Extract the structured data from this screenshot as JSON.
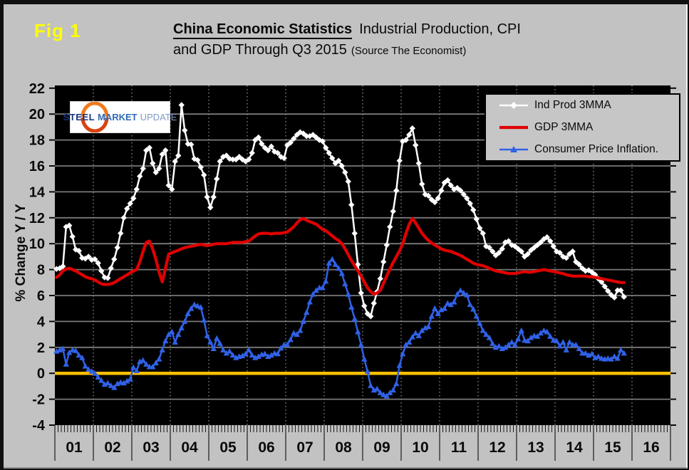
{
  "figure_label": "Fig 1",
  "header": {
    "title_bold": "China Economic Statistics",
    "title_rest": "Industrial Production, CPI",
    "title_line2": "and GDP Through Q3 2015",
    "source": "(Source The Economist)"
  },
  "logo": {
    "word1": "STEEL",
    "word2": "MARKET",
    "word3": "UPDATE"
  },
  "y_axis": {
    "title": "% Change Y / Y"
  },
  "colors": {
    "panel_gray": "#c2c2c2",
    "plot_background": "#000000",
    "ind_prod": "#ffffff",
    "gdp": "#e10000",
    "cpi": "#3061e6",
    "zero_line": "#ffc000",
    "gridline": "#7a7a7a",
    "fig_label_yellow": "#ffff00"
  },
  "chart_data": {
    "type": "line",
    "title": "China Economic Statistics Industrial Production, CPI and GDP Through Q3 2015",
    "xlabel": "",
    "ylabel": "% Change Y / Y",
    "ylim": [
      -4,
      22
    ],
    "ytick_step": 2,
    "grid": "horizontal solid, vertical dotted at year boundaries",
    "legend_position": "top-right inside plot",
    "x_years": [
      "01",
      "02",
      "03",
      "04",
      "05",
      "06",
      "07",
      "08",
      "09",
      "10",
      "11",
      "12",
      "13",
      "14",
      "15",
      "16"
    ],
    "x_start": "2001-01",
    "x_end": "2015-10",
    "x_frequency": "monthly",
    "zero_line_value": 0,
    "series": [
      {
        "name": "Ind Prod 3MMA",
        "color": "#ffffff",
        "marker": "diamond",
        "values": [
          8.05,
          8.1,
          8.25,
          11.3,
          11.4,
          10.55,
          9.55,
          9.45,
          8.9,
          8.85,
          9.0,
          8.75,
          8.8,
          8.5,
          7.9,
          7.4,
          7.35,
          8.1,
          8.8,
          9.7,
          10.8,
          12.0,
          12.7,
          13.1,
          13.5,
          14.2,
          15.2,
          15.8,
          17.2,
          17.4,
          16.2,
          15.5,
          15.8,
          16.9,
          17.2,
          14.5,
          14.2,
          16.35,
          16.8,
          20.7,
          18.75,
          17.7,
          17.65,
          16.55,
          16.45,
          15.9,
          15.3,
          13.6,
          12.8,
          13.6,
          15.0,
          16.35,
          16.7,
          16.8,
          16.55,
          16.5,
          16.5,
          16.7,
          16.5,
          16.35,
          16.5,
          17.0,
          18.0,
          18.2,
          17.7,
          17.4,
          17.2,
          17.5,
          17.1,
          17.0,
          16.7,
          16.6,
          17.6,
          17.8,
          18.1,
          18.4,
          18.6,
          18.5,
          18.3,
          18.3,
          18.4,
          18.2,
          18.0,
          17.9,
          17.4,
          17.0,
          16.6,
          16.2,
          16.4,
          16.0,
          15.5,
          14.8,
          13.0,
          10.8,
          8.4,
          6.2,
          5.2,
          4.6,
          4.4,
          5.4,
          6.3,
          7.3,
          8.6,
          9.9,
          11.3,
          12.5,
          14.1,
          16.4,
          17.9,
          18.0,
          18.4,
          18.9,
          17.6,
          16.2,
          14.6,
          13.8,
          13.7,
          13.4,
          13.2,
          13.5,
          14.1,
          14.7,
          14.9,
          14.5,
          14.2,
          14.3,
          14.1,
          13.8,
          13.5,
          13.1,
          12.6,
          11.9,
          11.2,
          10.8,
          9.8,
          9.7,
          9.4,
          9.1,
          9.3,
          9.6,
          10.1,
          10.2,
          9.9,
          9.8,
          9.6,
          9.4,
          9.0,
          9.2,
          9.5,
          9.7,
          9.9,
          10.1,
          10.35,
          10.5,
          10.2,
          9.8,
          9.4,
          9.3,
          9.0,
          8.9,
          9.2,
          9.4,
          8.6,
          8.4,
          8.1,
          7.9,
          7.95,
          7.8,
          7.6,
          7.3,
          7.05,
          6.7,
          6.35,
          6.05,
          5.85,
          6.4,
          6.4,
          5.9
        ]
      },
      {
        "name": "GDP 3MMA",
        "color": "#e10000",
        "marker": "none",
        "values": [
          7.4,
          7.6,
          7.9,
          8.05,
          8.1,
          8.0,
          7.9,
          7.75,
          7.6,
          7.45,
          7.35,
          7.3,
          7.2,
          7.05,
          6.9,
          6.85,
          6.85,
          6.9,
          7.0,
          7.15,
          7.3,
          7.45,
          7.6,
          7.75,
          7.9,
          8.0,
          8.6,
          9.4,
          10.1,
          10.2,
          9.6,
          8.8,
          7.8,
          7.05,
          8.1,
          9.2,
          9.3,
          9.4,
          9.5,
          9.6,
          9.7,
          9.75,
          9.8,
          9.85,
          9.9,
          9.95,
          9.9,
          9.85,
          9.9,
          9.95,
          10.0,
          10.0,
          10.0,
          10.0,
          10.05,
          10.1,
          10.1,
          10.1,
          10.1,
          10.15,
          10.2,
          10.4,
          10.6,
          10.75,
          10.8,
          10.8,
          10.8,
          10.75,
          10.8,
          10.8,
          10.8,
          10.85,
          10.9,
          11.1,
          11.3,
          11.6,
          11.85,
          11.95,
          11.8,
          11.7,
          11.6,
          11.5,
          11.3,
          11.1,
          11.0,
          10.8,
          10.6,
          10.4,
          10.25,
          10.0,
          9.6,
          9.15,
          8.7,
          8.3,
          7.9,
          7.5,
          7.05,
          6.6,
          6.3,
          6.1,
          6.2,
          6.4,
          6.95,
          7.5,
          8.05,
          8.55,
          9.0,
          9.45,
          10.0,
          10.8,
          11.5,
          11.95,
          11.6,
          11.2,
          10.8,
          10.5,
          10.25,
          10.05,
          9.9,
          9.75,
          9.6,
          9.5,
          9.45,
          9.4,
          9.3,
          9.2,
          9.1,
          8.95,
          8.8,
          8.65,
          8.5,
          8.4,
          8.35,
          8.3,
          8.2,
          8.1,
          8.0,
          7.9,
          7.85,
          7.8,
          7.75,
          7.7,
          7.7,
          7.7,
          7.75,
          7.8,
          7.85,
          7.8,
          7.8,
          7.85,
          7.9,
          7.95,
          8.0,
          7.95,
          7.9,
          7.85,
          7.8,
          7.75,
          7.7,
          7.6,
          7.55,
          7.5,
          7.5,
          7.5,
          7.5,
          7.5,
          7.45,
          7.45,
          7.4,
          7.35,
          7.3,
          7.25,
          7.2,
          7.15,
          7.1,
          7.05,
          7.0,
          7.0
        ]
      },
      {
        "name": "Consumer Price Inflation.",
        "color": "#3061e6",
        "marker": "triangle",
        "values": [
          1.7,
          1.8,
          1.9,
          0.7,
          1.6,
          1.8,
          1.75,
          1.4,
          1.2,
          0.55,
          0.3,
          0.15,
          0.0,
          -0.3,
          -0.55,
          -0.85,
          -0.75,
          -0.95,
          -1.1,
          -0.8,
          -0.7,
          -0.75,
          -0.6,
          -0.45,
          0.45,
          0.2,
          0.9,
          1.0,
          0.7,
          0.5,
          0.5,
          0.8,
          1.1,
          1.8,
          2.5,
          3.0,
          3.2,
          2.4,
          3.0,
          3.5,
          4.0,
          4.6,
          5.0,
          5.3,
          5.2,
          5.1,
          4.1,
          2.9,
          2.4,
          1.9,
          2.7,
          2.3,
          1.8,
          1.55,
          1.7,
          1.4,
          1.2,
          1.3,
          1.35,
          1.5,
          1.8,
          1.4,
          1.2,
          1.3,
          1.45,
          1.5,
          1.3,
          1.4,
          1.55,
          1.5,
          1.95,
          2.2,
          2.2,
          2.6,
          3.1,
          3.0,
          3.3,
          4.0,
          4.7,
          5.5,
          6.1,
          6.4,
          6.6,
          6.6,
          7.1,
          8.5,
          8.8,
          8.4,
          8.1,
          7.7,
          6.9,
          6.1,
          5.1,
          4.2,
          3.2,
          2.2,
          1.1,
          0.15,
          -0.95,
          -1.3,
          -1.2,
          -1.5,
          -1.65,
          -1.75,
          -1.5,
          -1.3,
          -0.8,
          0.6,
          1.5,
          2.2,
          2.4,
          2.8,
          3.1,
          2.9,
          3.3,
          3.5,
          3.6,
          4.4,
          5.0,
          4.6,
          4.9,
          5.0,
          5.4,
          5.3,
          5.5,
          6.1,
          6.4,
          6.2,
          6.05,
          5.3,
          4.95,
          4.4,
          3.85,
          3.3,
          3.0,
          2.75,
          2.3,
          2.0,
          2.1,
          1.9,
          2.0,
          2.2,
          2.4,
          2.2,
          2.65,
          3.3,
          2.55,
          2.5,
          2.75,
          2.9,
          2.85,
          3.1,
          3.3,
          3.2,
          2.85,
          2.55,
          2.5,
          2.1,
          2.4,
          1.8,
          2.4,
          2.2,
          2.2,
          1.9,
          1.55,
          1.55,
          1.4,
          1.5,
          1.2,
          1.3,
          1.15,
          1.1,
          1.15,
          1.1,
          1.3,
          1.15,
          1.8,
          1.55
        ]
      }
    ]
  }
}
